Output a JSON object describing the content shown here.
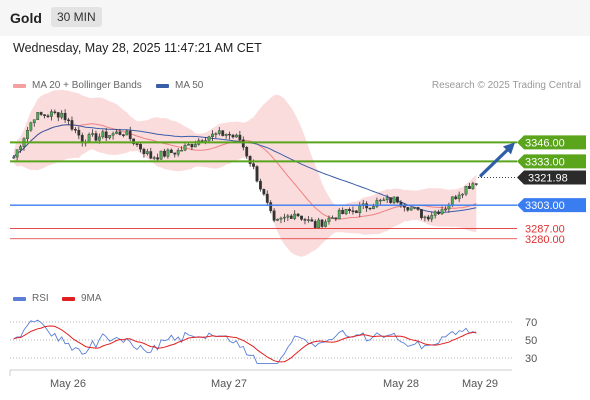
{
  "header": {
    "symbol": "Gold",
    "timeframe": "30 MIN"
  },
  "datetime": "Wednesday, May 28, 2025 11:47:21 AM CET",
  "legend": {
    "ma20": {
      "label": "MA 20 + Bollinger Bands",
      "color": "#f08080"
    },
    "ma50": {
      "label": "MA 50",
      "color": "#3a5da8"
    }
  },
  "attribution": "Research © 2025 Trading Central",
  "rsi_legend": {
    "rsi": {
      "label": "RSI",
      "color": "#5b7fd6"
    },
    "ma9": {
      "label": "9MA",
      "color": "#e02020"
    }
  },
  "chart_data": [
    {
      "type": "candlestick",
      "x_labels": [
        "May 26",
        "May 27",
        "May 28",
        "May 29"
      ],
      "ylim": [
        3260,
        3375
      ],
      "current_price": {
        "label": "3321.98",
        "value": 3321.98
      },
      "levels": [
        {
          "label": "3346.00",
          "value": 3346.0,
          "kind": "resistance",
          "color": "#5aa51c"
        },
        {
          "label": "3333.00",
          "value": 3333.0,
          "kind": "resistance",
          "color": "#5aa51c"
        },
        {
          "label": "3303.00",
          "value": 3303.0,
          "kind": "pivot",
          "color": "#3a7df0"
        },
        {
          "label": "3287.00",
          "value": 3287.0,
          "kind": "support",
          "color": "#e03030"
        },
        {
          "label": "3280.00",
          "value": 3280.0,
          "kind": "support",
          "color": "#e03030"
        }
      ],
      "bias": "up"
    },
    {
      "type": "line",
      "series": [
        {
          "name": "RSI"
        },
        {
          "name": "9MA"
        }
      ],
      "ylim": [
        20,
        80
      ],
      "y_ticks": [
        "70",
        "50",
        "30"
      ],
      "reference_lines": [
        70,
        50,
        30
      ]
    }
  ]
}
